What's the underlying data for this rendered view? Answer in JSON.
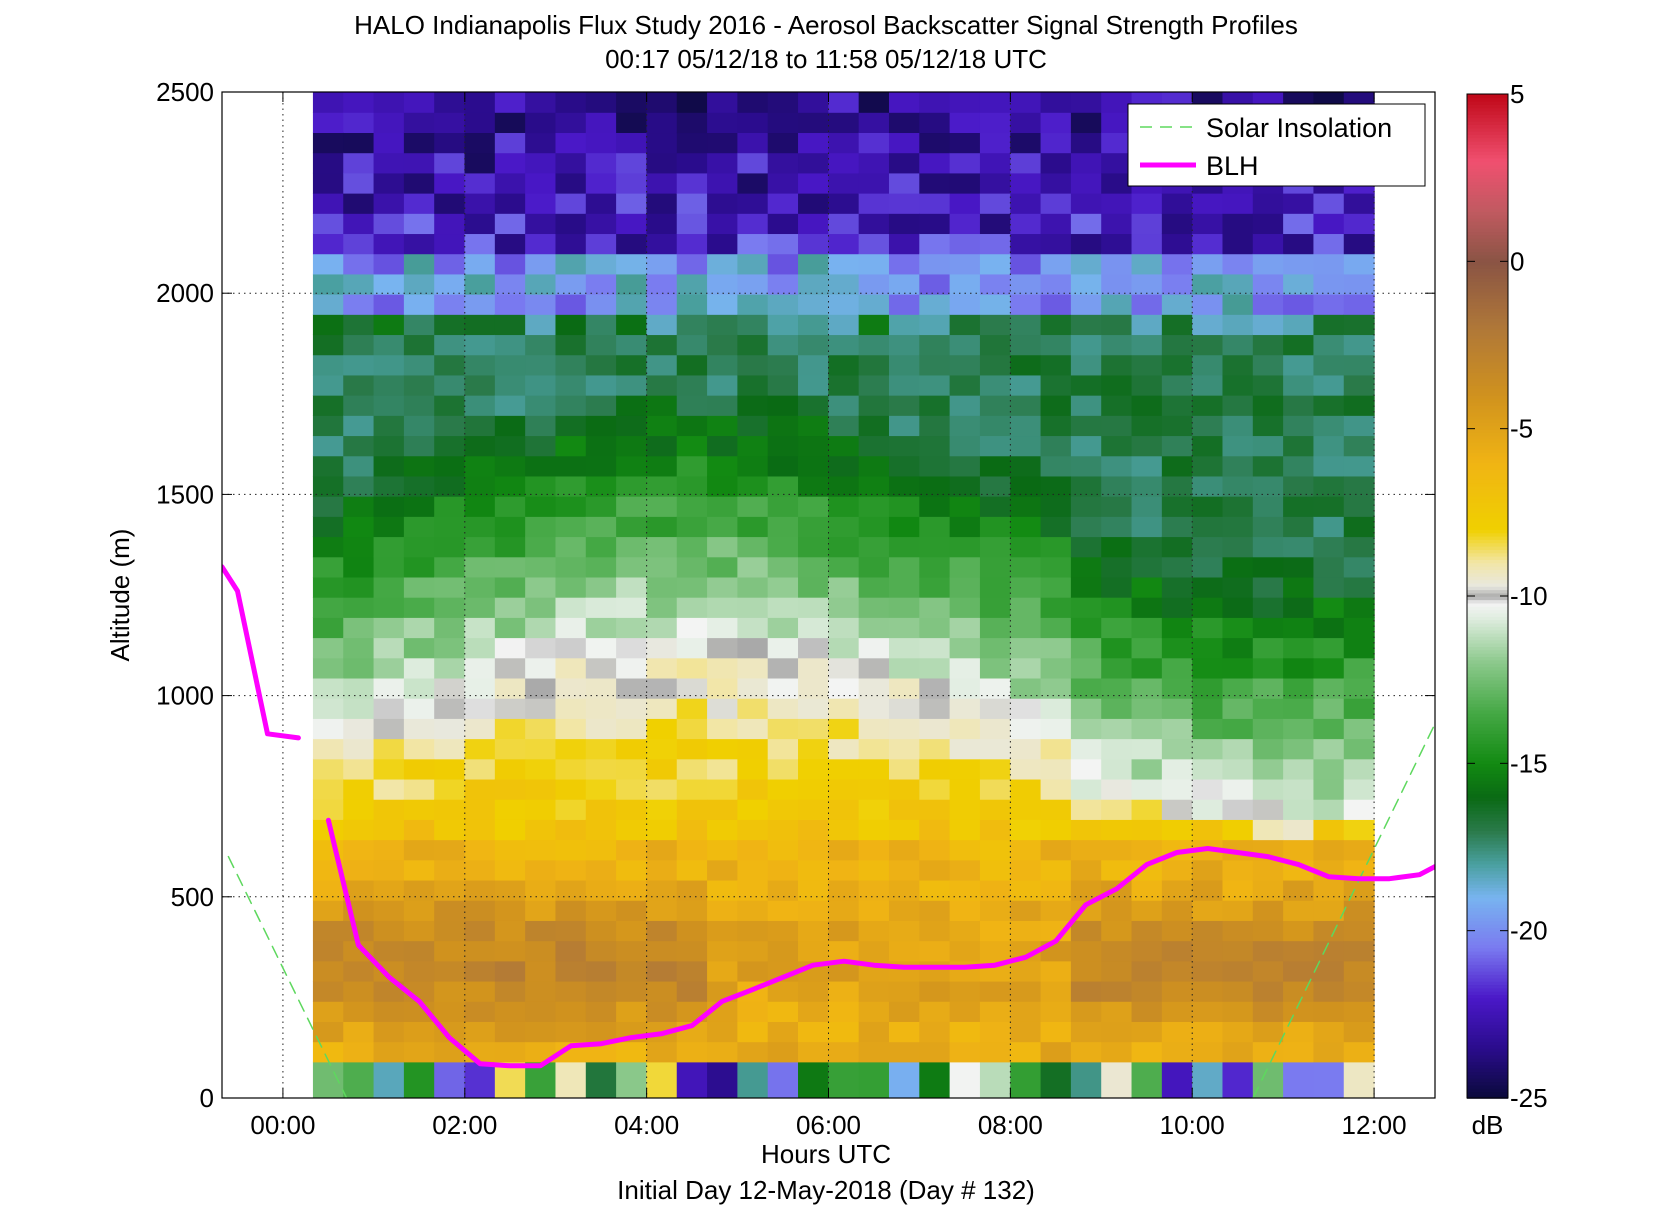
{
  "chart_data": {
    "type": "heatmap",
    "title": "HALO Indianapolis Flux Study 2016 - Aerosol Backscatter Signal Strength Profiles",
    "subtitle": "00:17 05/12/18 to 11:58 05/12/18  UTC",
    "xlabel": "Hours UTC",
    "xlabel2": "Initial Day 12-May-2018 (Day # 132)",
    "ylabel": "Altitude (m)",
    "xlim": [
      -0.67,
      12.67
    ],
    "ylim": [
      0,
      2500
    ],
    "x_tick_values": [
      0,
      2,
      4,
      6,
      8,
      10,
      12
    ],
    "x_tick_labels": [
      "00:00",
      "02:00",
      "04:00",
      "06:00",
      "08:00",
      "10:00",
      "12:00"
    ],
    "y_tick_values": [
      0,
      500,
      1000,
      1500,
      2000,
      2500
    ],
    "y_tick_labels": [
      "0",
      "500",
      "1000",
      "1500",
      "2000",
      "2500"
    ],
    "grid": true,
    "legend_position": "top-right",
    "colorbar": {
      "label": "dB",
      "range": [
        -25,
        5
      ],
      "tick_values": [
        5,
        0,
        -5,
        -10,
        -15,
        -20,
        -25
      ],
      "tick_labels": [
        "5",
        "0",
        "-5",
        "-10",
        "-15",
        "-20",
        "-25"
      ],
      "stops": [
        {
          "v": -25,
          "c": "#0a0a3a"
        },
        {
          "v": -23.5,
          "c": "#2a0c8c"
        },
        {
          "v": -22,
          "c": "#4a18c8"
        },
        {
          "v": -20.5,
          "c": "#7a7af0"
        },
        {
          "v": -19,
          "c": "#78b4f0"
        },
        {
          "v": -18,
          "c": "#4aa0a0"
        },
        {
          "v": -17,
          "c": "#2a7a4a"
        },
        {
          "v": -16,
          "c": "#0a6a14"
        },
        {
          "v": -15,
          "c": "#128a12"
        },
        {
          "v": -13.5,
          "c": "#44a844"
        },
        {
          "v": -12,
          "c": "#8ac88a"
        },
        {
          "v": -10.6,
          "c": "#e2eee2"
        },
        {
          "v": -10.2,
          "c": "#f4f4f4"
        },
        {
          "v": -10,
          "c": "#a8a8a8"
        },
        {
          "v": -9.7,
          "c": "#e8e8e0"
        },
        {
          "v": -9,
          "c": "#f2e6a8"
        },
        {
          "v": -8,
          "c": "#f0d000"
        },
        {
          "v": -6,
          "c": "#f0b414"
        },
        {
          "v": -4,
          "c": "#d0921e"
        },
        {
          "v": -2,
          "c": "#b07838"
        },
        {
          "v": 0,
          "c": "#8a5444"
        },
        {
          "v": 1.5,
          "c": "#c05a60"
        },
        {
          "v": 3,
          "c": "#f05070"
        },
        {
          "v": 5,
          "c": "#c00818"
        }
      ]
    },
    "heatmap": {
      "x_start": 0.33,
      "x_end": 12.0,
      "columns": 35,
      "row_bottoms": [
        0,
        90,
        2500
      ],
      "top_gap": false,
      "rows_per_bin": 48,
      "aloft_base_m": 90
    },
    "series": [
      {
        "name": "Solar Insolation",
        "style": "dashed",
        "color": "#5ed85e",
        "segments": [
          {
            "x": [
              -0.6,
              0.7
            ],
            "y": [
              600,
              0
            ]
          },
          {
            "x": [
              10.67,
              12.67
            ],
            "y": [
              0,
              930
            ]
          }
        ]
      },
      {
        "name": "BLH",
        "style": "solid",
        "color": "#ff00ff",
        "segments": [
          {
            "x": [
              -0.67,
              -0.5,
              -0.17,
              0.17
            ],
            "y": [
              1320,
              1260,
              905,
              895
            ]
          },
          {
            "x": [
              0.5,
              0.83,
              1.17,
              1.5,
              1.83,
              2.17,
              2.5,
              2.83,
              3.17,
              3.5,
              3.83,
              4.17,
              4.5,
              4.83,
              5.17,
              5.5,
              5.83,
              6.17,
              6.5,
              6.83,
              7.17,
              7.5,
              7.83,
              8.17,
              8.5,
              8.83,
              9.17,
              9.5,
              9.83,
              10.17,
              10.5,
              10.83,
              11.17,
              11.5,
              11.83,
              12.17,
              12.5,
              12.67
            ],
            "y": [
              690,
              380,
              300,
              240,
              150,
              85,
              80,
              80,
              130,
              135,
              150,
              160,
              180,
              240,
              270,
              300,
              330,
              340,
              330,
              325,
              325,
              325,
              330,
              350,
              390,
              480,
              520,
              580,
              610,
              620,
              610,
              600,
              580,
              550,
              545,
              545,
              555,
              575
            ]
          }
        ]
      }
    ]
  }
}
